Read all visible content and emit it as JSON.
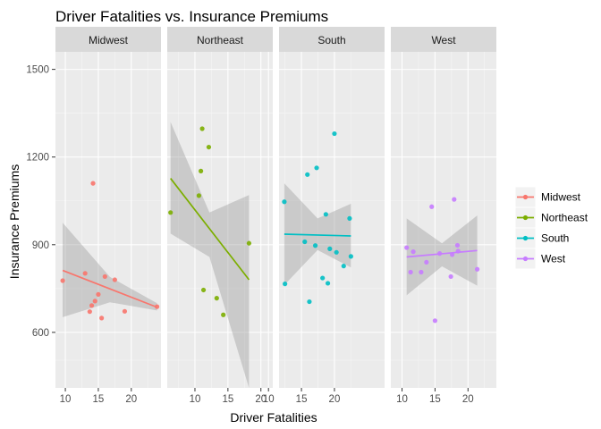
{
  "chart_data": {
    "type": "scatter",
    "title": "Driver Fatalities vs. Insurance Premiums",
    "xlabel": "Driver Fatalities",
    "ylabel": "Insurance Premiums",
    "ylim": [
      410,
      1560
    ],
    "y_ticks": [
      600,
      900,
      1200,
      1500
    ],
    "x_ticks": [
      10,
      15,
      20
    ],
    "facets": [
      {
        "name": "Midwest",
        "color": "#F8766D",
        "xlim": [
          8.5,
          24.5
        ],
        "points": [
          [
            9.6,
            777
          ],
          [
            13,
            802
          ],
          [
            13.7,
            671
          ],
          [
            14,
            692
          ],
          [
            14.2,
            1110
          ],
          [
            14.5,
            707
          ],
          [
            15,
            730
          ],
          [
            15.5,
            649
          ],
          [
            16,
            791
          ],
          [
            17.5,
            780
          ],
          [
            19,
            672
          ],
          [
            23.9,
            688
          ]
        ],
        "fit": {
          "x": [
            9.6,
            23.9
          ],
          "y": [
            812,
            686
          ]
        },
        "band": {
          "x": [
            9.6,
            16.75,
            23.9
          ],
          "upper": [
            975,
            790,
            700
          ],
          "lower": [
            652,
            703,
            675
          ]
        }
      },
      {
        "name": "Northeast",
        "color": "#7CAE00",
        "xlim": [
          5.8,
          21.8
        ],
        "points": [
          [
            6.3,
            1010
          ],
          [
            10.6,
            1068
          ],
          [
            10.9,
            1152
          ],
          [
            11.1,
            1297
          ],
          [
            11.3,
            745
          ],
          [
            12.1,
            1234
          ],
          [
            13.3,
            717
          ],
          [
            14.3,
            660
          ],
          [
            18.2,
            905
          ]
        ],
        "fit": {
          "x": [
            6.3,
            18.2
          ],
          "y": [
            1127,
            780
          ]
        },
        "band": {
          "x": [
            6.3,
            12.2,
            18.2
          ],
          "upper": [
            1320,
            1010,
            1070
          ],
          "lower": [
            938,
            858,
            410
          ]
        }
      },
      {
        "name": "South",
        "color": "#00BFC4",
        "xlim": [
          11.6,
          27.6
        ],
        "points": [
          [
            12.4,
            1047
          ],
          [
            12.5,
            766
          ],
          [
            15.5,
            910
          ],
          [
            15.9,
            1140
          ],
          [
            16.2,
            705
          ],
          [
            17.1,
            897
          ],
          [
            17.3,
            1163
          ],
          [
            18.2,
            786
          ],
          [
            18.7,
            1004
          ],
          [
            19,
            768
          ],
          [
            19.3,
            886
          ],
          [
            20,
            1280
          ],
          [
            20.3,
            874
          ],
          [
            21.4,
            827
          ],
          [
            22.3,
            990
          ],
          [
            22.5,
            860
          ]
        ],
        "fit": {
          "x": [
            12.4,
            22.5
          ],
          "y": [
            936,
            930
          ]
        },
        "band": {
          "x": [
            12.4,
            17.45,
            22.5
          ],
          "upper": [
            1110,
            990,
            1040
          ],
          "lower": [
            762,
            882,
            822
          ]
        }
      },
      {
        "name": "West",
        "color": "#C77CFF",
        "xlim": [
          8.3,
          24.3
        ],
        "points": [
          [
            10.7,
            890
          ],
          [
            11.3,
            806
          ],
          [
            11.7,
            876
          ],
          [
            12.9,
            806
          ],
          [
            13.7,
            840
          ],
          [
            14.5,
            1030
          ],
          [
            15,
            640
          ],
          [
            15.7,
            870
          ],
          [
            17.4,
            791
          ],
          [
            17.6,
            866
          ],
          [
            17.9,
            1055
          ],
          [
            18.4,
            898
          ],
          [
            18.5,
            878
          ],
          [
            21.4,
            816
          ]
        ],
        "fit": {
          "x": [
            10.7,
            21.4
          ],
          "y": [
            858,
            880
          ]
        },
        "band": {
          "x": [
            10.7,
            16.05,
            21.4
          ],
          "upper": [
            990,
            905,
            1000
          ],
          "lower": [
            727,
            826,
            760
          ]
        }
      }
    ],
    "legend": {
      "placement": "right",
      "entries": [
        "Midwest",
        "Northeast",
        "South",
        "West"
      ]
    }
  }
}
